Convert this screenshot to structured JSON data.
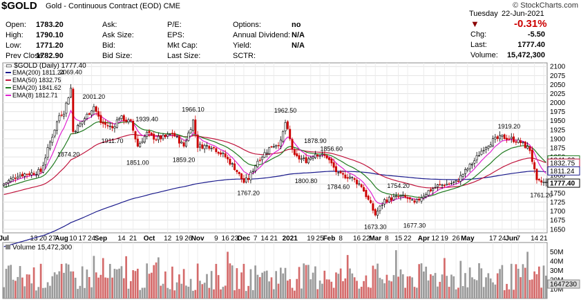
{
  "header": {
    "symbol": "$GOLD",
    "name": "Gold - Continuous Contract (EOD)",
    "exchange": "CME",
    "copyright": "© StockCharts.com",
    "date_label": "Tuesday",
    "date": "22-Jun-2021",
    "pct_change": "-0.31%",
    "rows": [
      [
        "Open:",
        "1783.20",
        "Ask:",
        "",
        "P/E:",
        "",
        "Options:",
        "no"
      ],
      [
        "High:",
        "1790.10",
        "Ask Size:",
        "",
        "EPS:",
        "",
        "Annual Dividend:",
        "N/A"
      ],
      [
        "Low:",
        "1771.20",
        "Bid:",
        "",
        "Mkt Cap:",
        "",
        "Yield:",
        "N/A"
      ],
      [
        "Prev Close:",
        "1782.90",
        "Bid Size:",
        "",
        "Last Size:",
        "",
        "SCTR:",
        ""
      ]
    ],
    "right_rows": [
      [
        "Chg:",
        "-5.50"
      ],
      [
        "Last:",
        "1777.40"
      ],
      [
        "Volume:",
        "15,472,300"
      ]
    ]
  },
  "legend": {
    "price": "$GOLD (Daily) 1777.40",
    "items": [
      {
        "label": "EMA(200) 1811.24",
        "color": "#1a1a8c"
      },
      {
        "label": "EMA(50) 1832.75",
        "color": "#c0143c"
      },
      {
        "label": "EMA(20) 1841.62",
        "color": "#1e7a1e"
      },
      {
        "label": "EMA(8) 1812.71",
        "color": "#e020d0"
      }
    ],
    "volume": "Volume 15,472,300"
  },
  "colors": {
    "up": "#000000",
    "down": "#cc0000",
    "ema200": "#1a1a8c",
    "ema50": "#c0143c",
    "ema20": "#1e7a1e",
    "ema8": "#e020d0",
    "vol_up": "#9a9a9a",
    "vol_down": "#d46a6a"
  },
  "chart_data": {
    "type": "candlestick",
    "y_ticks": [
      1650,
      1675,
      1700,
      1725,
      1750,
      1775,
      1800,
      1825,
      1850,
      1875,
      1900,
      1925,
      1950,
      1975,
      2000,
      2025,
      2050,
      2075,
      2100
    ],
    "ylim": [
      1640,
      2110
    ],
    "x_labels": [
      {
        "i": 0,
        "t": "Jul"
      },
      {
        "i": 13,
        "t": "13"
      },
      {
        "i": 17,
        "t": "20"
      },
      {
        "i": 21,
        "t": "27"
      },
      {
        "i": 25,
        "t": "Aug"
      },
      {
        "i": 30,
        "t": "10"
      },
      {
        "i": 34,
        "t": "17"
      },
      {
        "i": 38,
        "t": "24"
      },
      {
        "i": 42,
        "t": "Sep"
      },
      {
        "i": 51,
        "t": "14"
      },
      {
        "i": 56,
        "t": "21"
      },
      {
        "i": 63,
        "t": "Oct"
      },
      {
        "i": 71,
        "t": "12"
      },
      {
        "i": 76,
        "t": "19"
      },
      {
        "i": 80,
        "t": "26"
      },
      {
        "i": 84,
        "t": "Nov"
      },
      {
        "i": 92,
        "t": "9"
      },
      {
        "i": 96,
        "t": "16"
      },
      {
        "i": 100,
        "t": "23"
      },
      {
        "i": 104,
        "t": "Dec"
      },
      {
        "i": 109,
        "t": "7"
      },
      {
        "i": 113,
        "t": "14"
      },
      {
        "i": 117,
        "t": "21"
      },
      {
        "i": 124,
        "t": "2021"
      },
      {
        "i": 133,
        "t": "19"
      },
      {
        "i": 137,
        "t": "25"
      },
      {
        "i": 141,
        "t": "Feb"
      },
      {
        "i": 146,
        "t": "8"
      },
      {
        "i": 153,
        "t": "16"
      },
      {
        "i": 157,
        "t": "22"
      },
      {
        "i": 161,
        "t": "Mar"
      },
      {
        "i": 166,
        "t": "8"
      },
      {
        "i": 171,
        "t": "15"
      },
      {
        "i": 175,
        "t": "22"
      },
      {
        "i": 182,
        "t": "Apr"
      },
      {
        "i": 187,
        "t": "12"
      },
      {
        "i": 191,
        "t": "19"
      },
      {
        "i": 196,
        "t": "26"
      },
      {
        "i": 201,
        "t": "May"
      },
      {
        "i": 212,
        "t": "17"
      },
      {
        "i": 216,
        "t": "24"
      },
      {
        "i": 220,
        "t": "Jun"
      },
      {
        "i": 223,
        "t": "7"
      },
      {
        "i": 230,
        "t": "14"
      },
      {
        "i": 234,
        "t": "21"
      }
    ],
    "annotations": [
      {
        "i": 29,
        "v": 2069.4,
        "t": "2069.40",
        "pos": "above"
      },
      {
        "i": 39,
        "v": 2001.2,
        "t": "2001.20",
        "pos": "above"
      },
      {
        "i": 28,
        "v": 1874.2,
        "t": "1874.20",
        "pos": "below"
      },
      {
        "i": 47,
        "v": 1911.7,
        "t": "1911.70",
        "pos": "below"
      },
      {
        "i": 62,
        "v": 1939.4,
        "t": "1939.40",
        "pos": "above"
      },
      {
        "i": 58,
        "v": 1851.0,
        "t": "1851.00",
        "pos": "below"
      },
      {
        "i": 82,
        "v": 1966.1,
        "t": "1966.10",
        "pos": "above"
      },
      {
        "i": 78,
        "v": 1859.2,
        "t": "1859.20",
        "pos": "below"
      },
      {
        "i": 106,
        "v": 1767.2,
        "t": "1767.20",
        "pos": "below"
      },
      {
        "i": 122,
        "v": 1962.5,
        "t": "1962.50",
        "pos": "above"
      },
      {
        "i": 135,
        "v": 1878.9,
        "t": "1878.90",
        "pos": "above"
      },
      {
        "i": 142,
        "v": 1856.6,
        "t": "1856.60",
        "pos": "above"
      },
      {
        "i": 131,
        "v": 1800.8,
        "t": "1800.80",
        "pos": "below"
      },
      {
        "i": 145,
        "v": 1784.6,
        "t": "1784.60",
        "pos": "below"
      },
      {
        "i": 171,
        "v": 1754.2,
        "t": "1754.20",
        "pos": "above"
      },
      {
        "i": 161,
        "v": 1673.3,
        "t": "1673.30",
        "pos": "below"
      },
      {
        "i": 178,
        "v": 1677.3,
        "t": "1677.30",
        "pos": "below"
      },
      {
        "i": 219,
        "v": 1919.2,
        "t": "1919.20",
        "pos": "above"
      },
      {
        "i": 233,
        "v": 1761.2,
        "t": "1761.20",
        "pos": "below"
      }
    ],
    "price_tags": [
      {
        "v": 1841.62,
        "t": "1841.62",
        "color": "#1e7a1e"
      },
      {
        "v": 1832.75,
        "t": "1832.75",
        "color": "#c0143c"
      },
      {
        "v": 1811.24,
        "t": "1811.24",
        "color": "#1a1a8c"
      },
      {
        "v": 1777.4,
        "t": "1777.40",
        "color": "#000000"
      }
    ],
    "vol_ticks": [
      {
        "v": 10,
        "t": "10M"
      },
      {
        "v": 20,
        "t": "20M"
      },
      {
        "v": 30,
        "t": "30M"
      },
      {
        "v": 40,
        "t": "40M"
      },
      {
        "v": 50,
        "t": "50M"
      }
    ],
    "vol_current": "15472300",
    "close_knots": [
      [
        0,
        1775
      ],
      [
        6,
        1800
      ],
      [
        12,
        1805
      ],
      [
        16,
        1810
      ],
      [
        20,
        1890
      ],
      [
        24,
        1965
      ],
      [
        26,
        1975
      ],
      [
        29,
        2040
      ],
      [
        30,
        1920
      ],
      [
        33,
        1940
      ],
      [
        39,
        1990
      ],
      [
        42,
        1945
      ],
      [
        47,
        1930
      ],
      [
        50,
        1960
      ],
      [
        55,
        1945
      ],
      [
        58,
        1880
      ],
      [
        62,
        1915
      ],
      [
        66,
        1900
      ],
      [
        70,
        1905
      ],
      [
        73,
        1915
      ],
      [
        78,
        1880
      ],
      [
        82,
        1950
      ],
      [
        84,
        1880
      ],
      [
        90,
        1880
      ],
      [
        96,
        1850
      ],
      [
        100,
        1820
      ],
      [
        104,
        1780
      ],
      [
        106,
        1790
      ],
      [
        110,
        1840
      ],
      [
        113,
        1860
      ],
      [
        116,
        1880
      ],
      [
        120,
        1890
      ],
      [
        122,
        1945
      ],
      [
        126,
        1850
      ],
      [
        131,
        1840
      ],
      [
        135,
        1860
      ],
      [
        140,
        1850
      ],
      [
        145,
        1800
      ],
      [
        150,
        1795
      ],
      [
        155,
        1770
      ],
      [
        158,
        1730
      ],
      [
        161,
        1690
      ],
      [
        165,
        1730
      ],
      [
        168,
        1735
      ],
      [
        172,
        1740
      ],
      [
        175,
        1735
      ],
      [
        178,
        1720
      ],
      [
        181,
        1740
      ],
      [
        184,
        1755
      ],
      [
        188,
        1770
      ],
      [
        192,
        1775
      ],
      [
        196,
        1780
      ],
      [
        200,
        1810
      ],
      [
        204,
        1840
      ],
      [
        208,
        1875
      ],
      [
        212,
        1895
      ],
      [
        216,
        1905
      ],
      [
        220,
        1900
      ],
      [
        224,
        1890
      ],
      [
        228,
        1870
      ],
      [
        231,
        1780
      ],
      [
        233,
        1780
      ],
      [
        235,
        1777.4
      ]
    ],
    "n_bars": 236
  }
}
